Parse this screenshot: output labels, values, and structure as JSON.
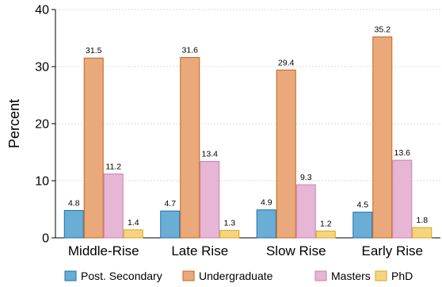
{
  "chart_data": {
    "type": "bar",
    "ylabel": "Percent",
    "xlabel": "",
    "ylim": [
      0,
      40
    ],
    "yticks": [
      "0",
      "10",
      "20",
      "30",
      "40"
    ],
    "ytick_values": [
      0,
      10,
      20,
      30,
      40
    ],
    "grid": true,
    "legend_position": "bottom",
    "categories": [
      "Middle-Rise",
      "Late Rise",
      "Slow Rise",
      "Early Rise"
    ],
    "series": [
      {
        "name": "Post. Secondary",
        "color": "#6aaed6",
        "stroke": "#1f6fa8",
        "values": [
          4.8,
          4.7,
          4.9,
          4.5
        ],
        "labels": [
          "4.8",
          "4.7",
          "4.9",
          "4.5"
        ]
      },
      {
        "name": "Undergraduate",
        "color": "#e9a97b",
        "stroke": "#c8621f",
        "values": [
          31.5,
          31.6,
          29.4,
          35.2
        ],
        "labels": [
          "31.5",
          "31.6",
          "29.4",
          "35.2"
        ]
      },
      {
        "name": "Masters",
        "color": "#e6b6d4",
        "stroke": "#c783ae",
        "values": [
          11.2,
          13.4,
          9.3,
          13.6
        ],
        "labels": [
          "11.2",
          "13.4",
          "9.3",
          "13.6"
        ]
      },
      {
        "name": "PhD",
        "color": "#f6d47f",
        "stroke": "#d9a520",
        "values": [
          1.4,
          1.3,
          1.2,
          1.8
        ],
        "labels": [
          "1.4",
          "1.3",
          "1.2",
          "1.8"
        ]
      }
    ]
  }
}
